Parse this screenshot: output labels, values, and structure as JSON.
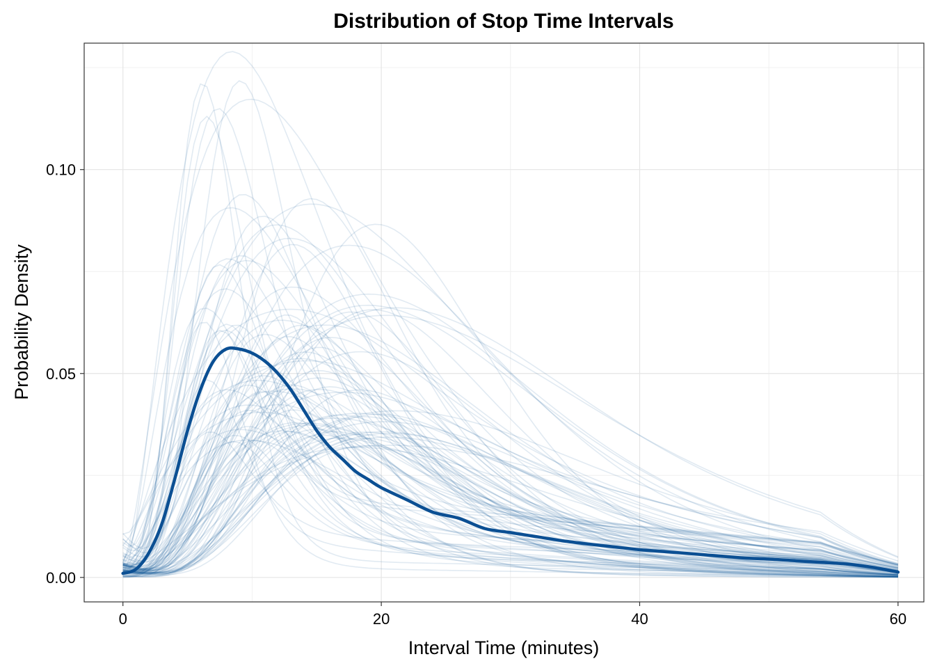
{
  "chart_data": {
    "type": "line",
    "title": "Distribution of Stop Time Intervals",
    "xlabel": "Interval Time (minutes)",
    "ylabel": "Probability Density",
    "xlim": [
      -3,
      62
    ],
    "ylim": [
      -0.006,
      0.131
    ],
    "x_ticks": [
      {
        "value": 0,
        "label": "0"
      },
      {
        "value": 20,
        "label": "20"
      },
      {
        "value": 40,
        "label": "40"
      },
      {
        "value": 60,
        "label": "60"
      }
    ],
    "y_ticks": [
      {
        "value": 0,
        "label": "0.00"
      },
      {
        "value": 0.05,
        "label": "0.05"
      },
      {
        "value": 0.1,
        "label": "0.10"
      }
    ],
    "x_minor": [
      10,
      30,
      50
    ],
    "y_minor": [
      0.025,
      0.075,
      0.125
    ],
    "grid": true,
    "legend": "none",
    "colors": {
      "line": "#0b4f93",
      "grid": "#e5e5e5"
    },
    "sample_series": {
      "count": 100,
      "opacity": 0.12,
      "description_of_range": "x from 0 to 60",
      "peak_x_range": [
        6,
        20
      ],
      "peak_y_range": [
        0.03,
        0.127
      ]
    },
    "series": [
      {
        "x": [
          0,
          1,
          2,
          3,
          4,
          5,
          6,
          7,
          8,
          9,
          10,
          11,
          12,
          13,
          14,
          15,
          16,
          17,
          18,
          19,
          20,
          22,
          24,
          26,
          28,
          30,
          32,
          34,
          36,
          38,
          40,
          42,
          44,
          46,
          48,
          50,
          52,
          54,
          56,
          58,
          60
        ],
        "values": [
          0.001,
          0.002,
          0.006,
          0.013,
          0.024,
          0.036,
          0.046,
          0.053,
          0.056,
          0.056,
          0.055,
          0.053,
          0.05,
          0.046,
          0.041,
          0.036,
          0.032,
          0.029,
          0.026,
          0.024,
          0.022,
          0.019,
          0.016,
          0.0145,
          0.012,
          0.011,
          0.01,
          0.009,
          0.0082,
          0.0075,
          0.0068,
          0.0063,
          0.0058,
          0.0053,
          0.0048,
          0.0045,
          0.0041,
          0.0037,
          0.0033,
          0.0025,
          0.0013
        ]
      }
    ]
  }
}
